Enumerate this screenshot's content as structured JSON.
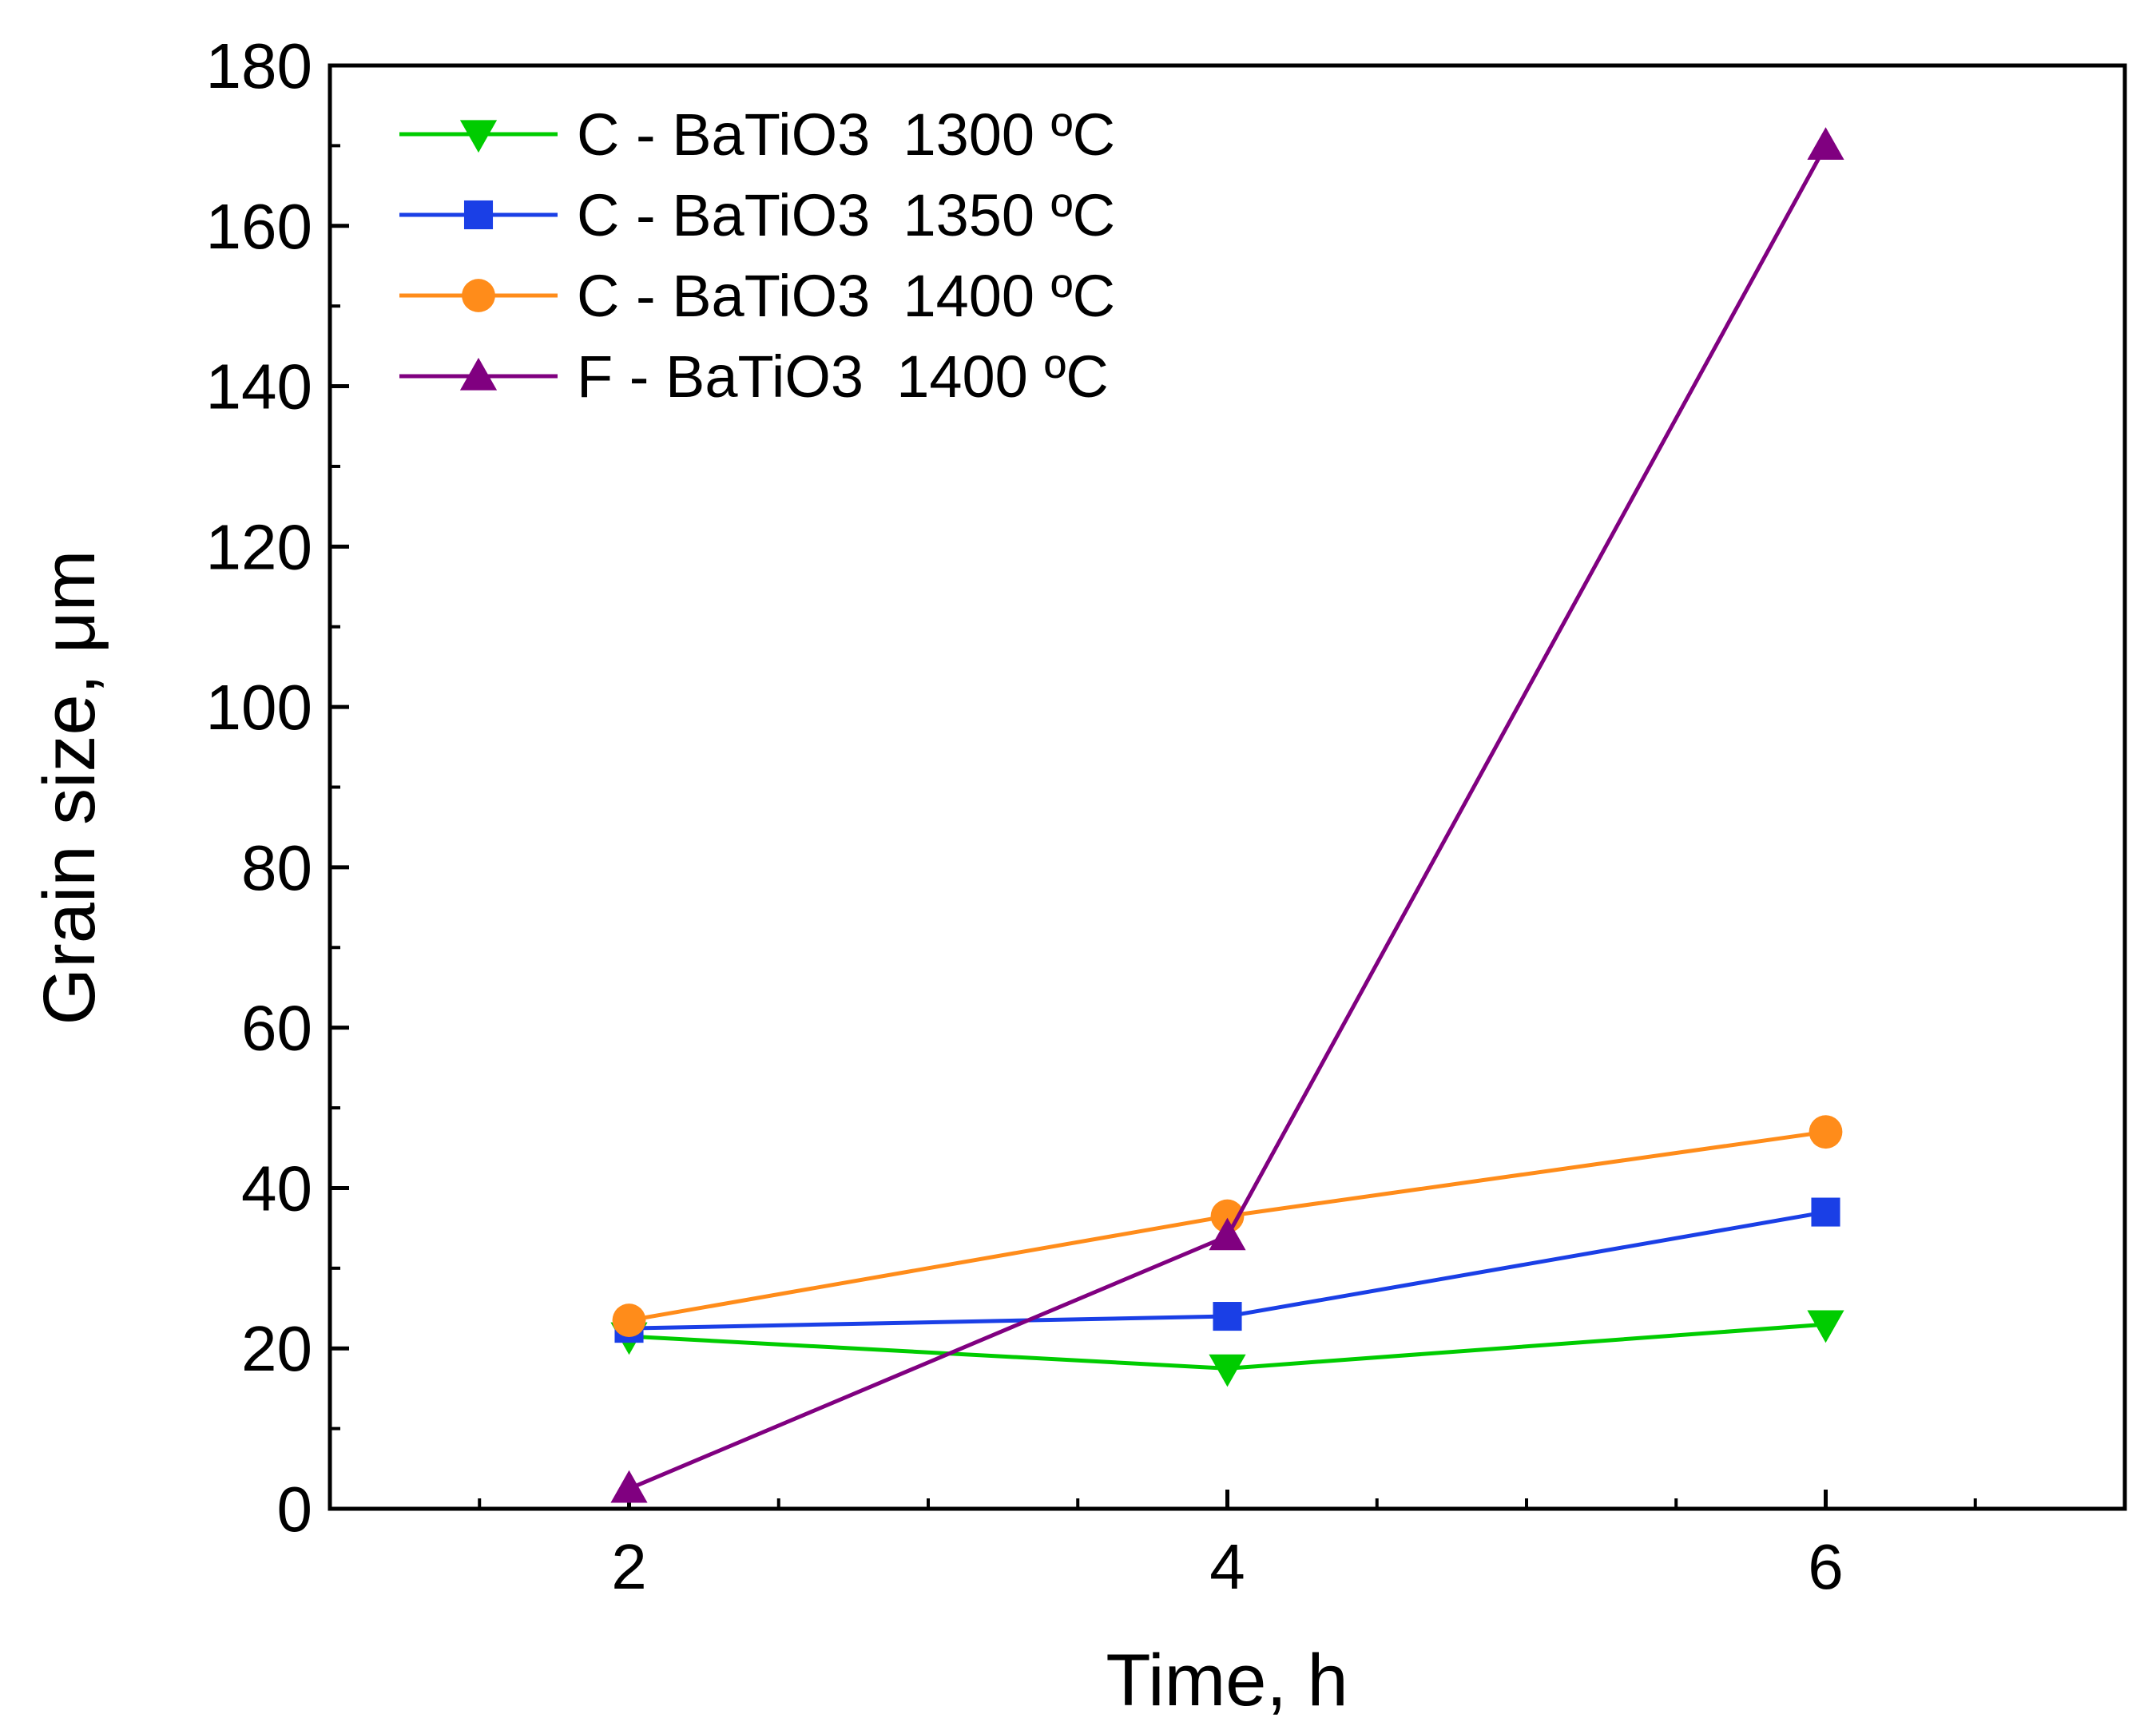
{
  "chart_data": {
    "type": "line",
    "title": "",
    "xlabel": "Time, h",
    "ylabel": "Grain size, μm",
    "xlim": [
      1,
      7
    ],
    "ylim": [
      0,
      180
    ],
    "x_major_ticks": [
      2,
      4,
      6
    ],
    "x_minor_ticks": [
      1.5,
      2.5,
      3,
      3.5,
      4.5,
      5,
      5.5,
      6.5
    ],
    "y_major_ticks": [
      0,
      20,
      40,
      60,
      80,
      100,
      120,
      140,
      160,
      180
    ],
    "x_tick_labels": [
      "2",
      "4",
      "6"
    ],
    "y_tick_labels": [
      "0",
      "20",
      "40",
      "60",
      "80",
      "100",
      "120",
      "140",
      "160",
      "180"
    ],
    "grid": false,
    "legend_position": "top-left",
    "x": [
      2,
      4,
      6
    ],
    "series": [
      {
        "name": "C - BaTiO3  1300 ºC",
        "color": "#00cc00",
        "marker": "triangle-down",
        "values": [
          21.5,
          17.5,
          23
        ]
      },
      {
        "name": "C - BaTiO3  1350 ºC",
        "color": "#1a3fe6",
        "marker": "square",
        "values": [
          22.5,
          24,
          37
        ]
      },
      {
        "name": "C - BaTiO3  1400 ºC",
        "color": "#ff8c1a",
        "marker": "circle",
        "values": [
          23.5,
          36.5,
          47
        ]
      },
      {
        "name": "F - BaTiO3  1400 ºC",
        "color": "#800080",
        "marker": "triangle-up",
        "values": [
          2.5,
          34,
          170
        ]
      }
    ]
  }
}
